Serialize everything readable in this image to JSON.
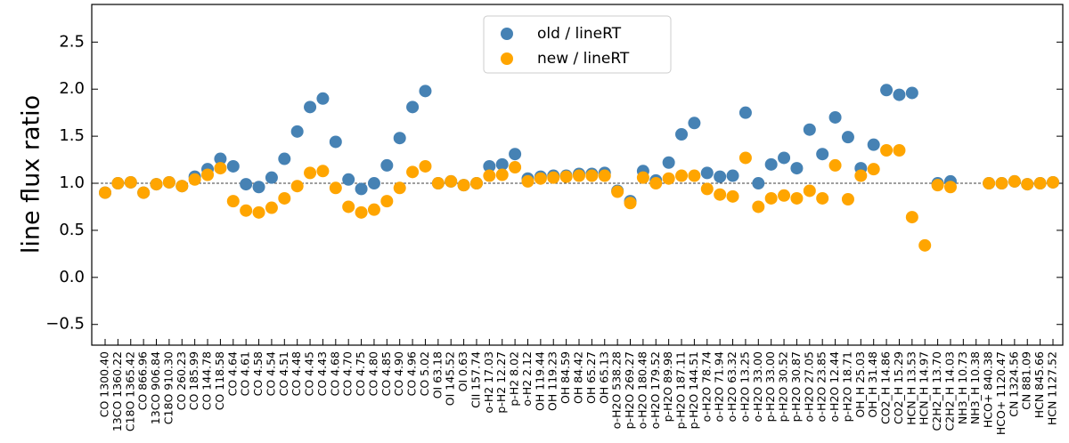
{
  "chart_data": {
    "type": "scatter",
    "y_label": "line flux ratio",
    "categories": [
      "CO 1300.40",
      "13CO 1360.22",
      "C18O 1365.42",
      "CO 866.96",
      "13CO 906.84",
      "C18O 910.30",
      "CO 260.23",
      "CO 185.99",
      "CO 144.78",
      "CO 118.58",
      "CO 4.64",
      "CO 4.61",
      "CO 4.58",
      "CO 4.54",
      "CO 4.51",
      "CO 4.48",
      "CO 4.45",
      "CO 4.43",
      "CO 4.68",
      "CO 4.70",
      "CO 4.75",
      "CO 4.80",
      "CO 4.85",
      "CO 4.90",
      "CO 4.96",
      "CO 5.02",
      "OI 63.18",
      "OI 145.52",
      "OI 0.63",
      "CII 157.74",
      "o-H2 17.03",
      "p-H2 12.27",
      "p-H2 8.02",
      "o-H2 2.12",
      "OH 119.44",
      "OH 119.23",
      "OH 84.59",
      "OH 84.42",
      "OH 65.27",
      "OH 65.13",
      "o-H2O 538.28",
      "p-H2O 269.27",
      "o-H2O 180.48",
      "o-H2O 179.52",
      "p-H2O 89.98",
      "p-H2O 187.11",
      "p-H2O 144.51",
      "o-H2O 78.74",
      "o-H2O 71.94",
      "o-H2O 63.32",
      "o-H2O 13.25",
      "o-H2O 33.00",
      "p-H2O 33.00",
      "p-H2O 30.52",
      "p-H2O 30.87",
      "o-H2O 27.05",
      "o-H2O 23.85",
      "o-H2O 12.44",
      "p-H2O 18.71",
      "OH_H 25.03",
      "OH_H 31.48",
      "CO2_H 14.86",
      "CO2_H 15.29",
      "HCN_H 13.53",
      "HCN_H 14.97",
      "C2H2_H 13.70",
      "C2H2_H 14.03",
      "NH3_H 10.73",
      "NH3_H 10.38",
      "HCO+ 840.38",
      "HCO+ 1120.47",
      "CN 1324.56",
      "CN 881.09",
      "HCN 845.66",
      "HCN 1127.52"
    ],
    "series": [
      {
        "name": "old / lineRT",
        "color": "#4682b4",
        "values": [
          0.9,
          1.0,
          1.01,
          0.9,
          0.99,
          1.01,
          0.97,
          1.07,
          1.15,
          1.26,
          1.18,
          0.99,
          0.96,
          1.06,
          1.26,
          1.55,
          1.81,
          1.9,
          1.44,
          1.04,
          0.94,
          1.0,
          1.19,
          1.48,
          1.81,
          1.98,
          1.0,
          1.02,
          0.98,
          1.0,
          1.18,
          1.2,
          1.31,
          1.05,
          1.07,
          1.08,
          1.08,
          1.1,
          1.1,
          1.11,
          0.92,
          0.81,
          1.13,
          1.03,
          1.22,
          1.52,
          1.64,
          1.11,
          1.07,
          1.08,
          1.75,
          1.0,
          1.2,
          1.27,
          1.16,
          1.57,
          1.31,
          1.7,
          1.49,
          1.16,
          1.41,
          1.99,
          1.94,
          1.96,
          null,
          1.0,
          1.02,
          null,
          null,
          1.0,
          1.0,
          1.02,
          0.99,
          1.0,
          1.01
        ]
      },
      {
        "name": "new / lineRT",
        "color": "#ffa500",
        "values": [
          0.9,
          1.0,
          1.01,
          0.9,
          0.99,
          1.01,
          0.97,
          1.04,
          1.09,
          1.16,
          0.81,
          0.71,
          0.69,
          0.74,
          0.84,
          0.97,
          1.11,
          1.13,
          0.95,
          0.75,
          0.69,
          0.72,
          0.81,
          0.95,
          1.12,
          1.18,
          1.0,
          1.02,
          0.98,
          1.0,
          1.08,
          1.09,
          1.17,
          1.02,
          1.05,
          1.06,
          1.07,
          1.08,
          1.08,
          1.08,
          0.91,
          0.79,
          1.06,
          1.0,
          1.05,
          1.08,
          1.08,
          0.94,
          0.88,
          0.86,
          1.27,
          0.75,
          0.84,
          0.87,
          0.84,
          0.92,
          0.84,
          1.19,
          0.83,
          1.08,
          1.15,
          1.35,
          1.35,
          0.64,
          0.34,
          0.98,
          0.96,
          null,
          null,
          1.0,
          1.0,
          1.02,
          0.99,
          1.0,
          1.01
        ]
      }
    ],
    "ylim": [
      -0.72,
      2.9
    ],
    "yticks": [
      {
        "value": -0.5,
        "label": "−0.5"
      },
      {
        "value": 0,
        "label": "0.0"
      },
      0.5,
      {
        "value": 1,
        "label": "1.0"
      },
      1.5,
      {
        "value": 2,
        "label": "2.0"
      },
      2.5
    ],
    "hline": 1,
    "legend": "upper center"
  }
}
